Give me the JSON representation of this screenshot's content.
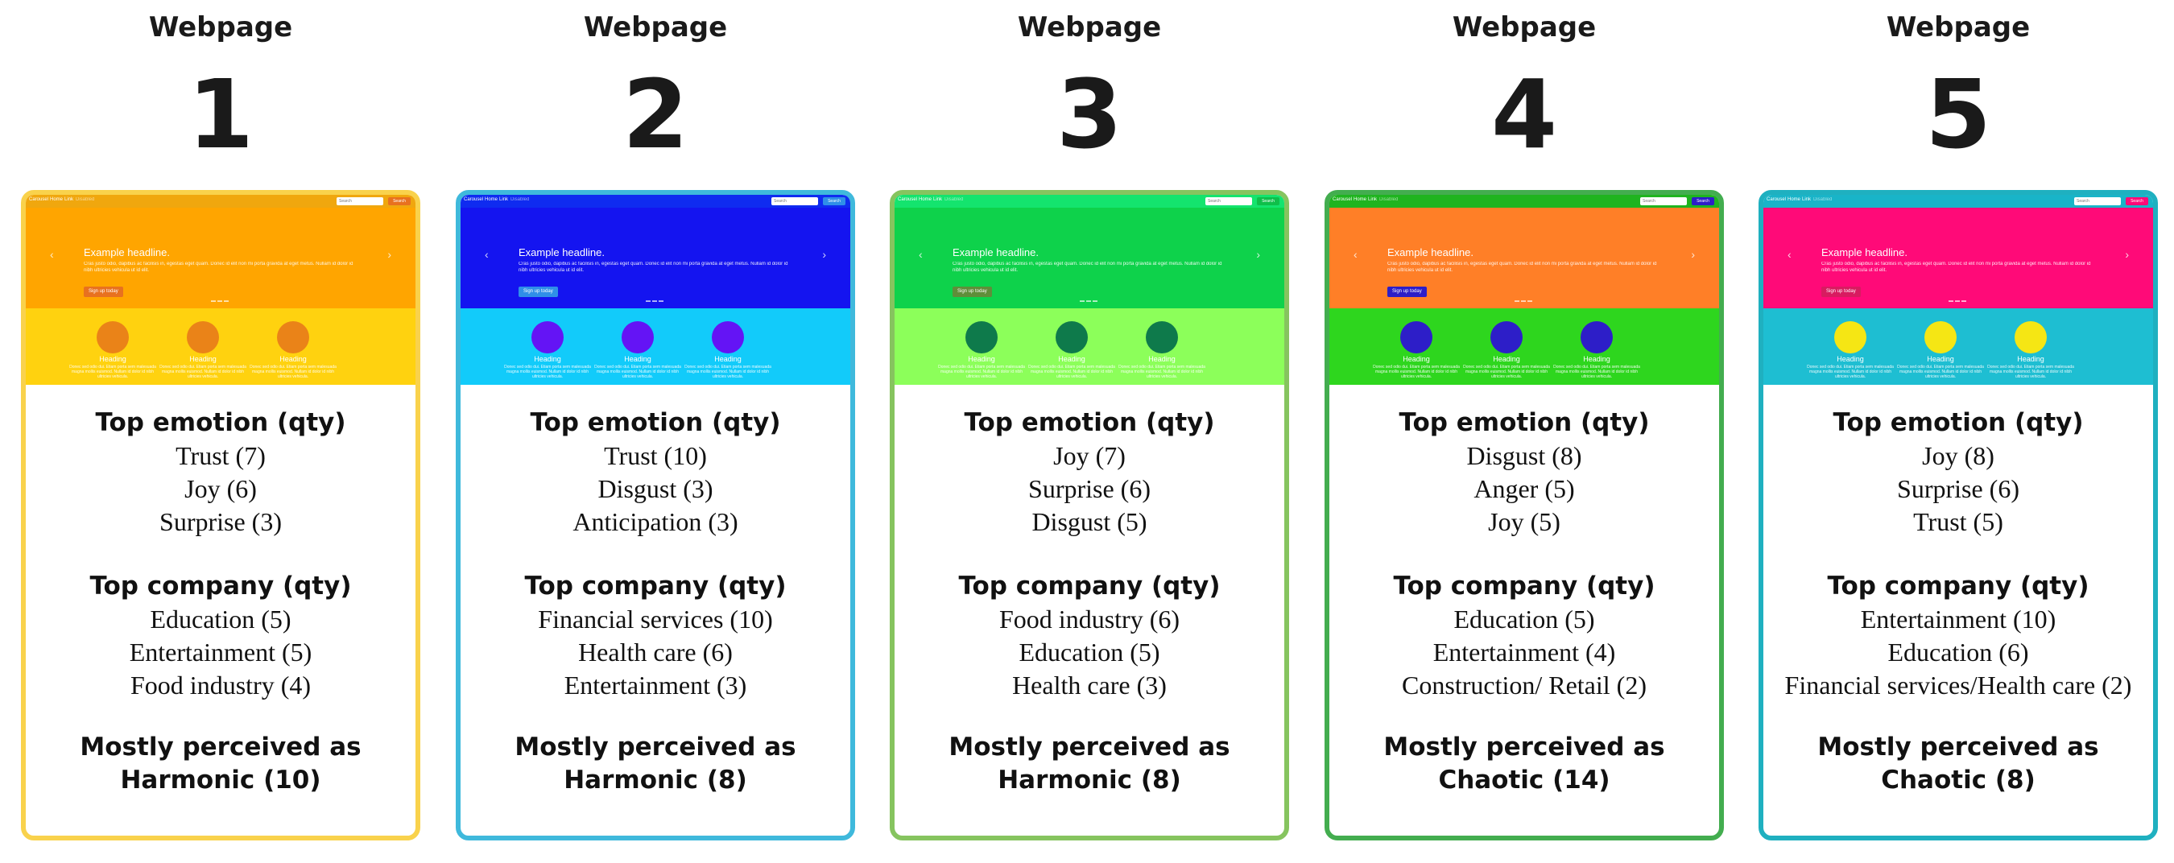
{
  "webpages": [
    {
      "label": "Webpage",
      "number": "1",
      "border_color": "#f9d24c",
      "colors": {
        "navbar": "#f0a70e",
        "hero": "#ffa500",
        "strip": "#ffd20f",
        "circle": "#ea8318",
        "button": "#e8711f",
        "search": "#e8711f"
      },
      "screenshot": {
        "brand": "Carousel",
        "nav": [
          "Home",
          "Link",
          "Disabled"
        ],
        "search_placeholder": "Search",
        "search_button": "Search",
        "headline": "Example headline.",
        "hero_text": "Cras justo odio, dapibus ac facilisis in, egestas eget quam. Donec id elit non mi porta gravida at eget metus. Nullam id dolor id nibh ultricies vehicula ut id elit.",
        "hero_button": "Sign up today",
        "feature_heading": "Heading",
        "feature_text": "Donec sed odio dui. Etiam porta sem malesuada magna mollis euismod. Nullam id dolor id nibh ultricies vehicula."
      },
      "emotion_title": "Top emotion (qty)",
      "emotions": [
        "Trust (7)",
        "Joy (6)",
        "Surprise (3)"
      ],
      "company_title": "Top company (qty)",
      "companies": [
        "Education (5)",
        "Entertainment (5)",
        "Food industry (4)"
      ],
      "perceived_label": "Mostly perceived as",
      "perceived_value": "Harmonic (10)"
    },
    {
      "label": "Webpage",
      "number": "2",
      "border_color": "#3fb9dc",
      "colors": {
        "navbar": "#0f2bf0",
        "hero": "#1414f0",
        "strip": "#12cbfa",
        "circle": "#6414f5",
        "button": "#2f8fe8",
        "search": "#2f8fe8"
      },
      "screenshot": {
        "brand": "Carousel",
        "nav": [
          "Home",
          "Link",
          "Disabled"
        ],
        "search_placeholder": "Search",
        "search_button": "Search",
        "headline": "Example headline.",
        "hero_text": "Cras justo odio, dapibus ac facilisis in, egestas eget quam. Donec id elit non mi porta gravida at eget metus. Nullam id dolor id nibh ultricies vehicula ut id elit.",
        "hero_button": "Sign up today",
        "feature_heading": "Heading",
        "feature_text": "Donec sed odio dui. Etiam porta sem malesuada magna mollis euismod. Nullam id dolor id nibh ultricies vehicula."
      },
      "emotion_title": "Top emotion (qty)",
      "emotions": [
        "Trust (10)",
        "Disgust (3)",
        "Anticipation (3)"
      ],
      "company_title": "Top company (qty)",
      "companies": [
        "Financial services (10)",
        "Health care (6)",
        "Entertainment (3)"
      ],
      "perceived_label": "Mostly perceived as",
      "perceived_value": "Harmonic (8)"
    },
    {
      "label": "Webpage",
      "number": "3",
      "border_color": "#86c45f",
      "colors": {
        "navbar": "#14e46e",
        "hero": "#0ed24b",
        "strip": "#8cff5a",
        "circle": "#0e7a4b",
        "button": "#5f8e3a",
        "search": "#0fbf4a"
      },
      "screenshot": {
        "brand": "Carousel",
        "nav": [
          "Home",
          "Link",
          "Disabled"
        ],
        "search_placeholder": "Search",
        "search_button": "Search",
        "headline": "Example headline.",
        "hero_text": "Cras justo odio, dapibus ac facilisis in, egestas eget quam. Donec id elit non mi porta gravida at eget metus. Nullam id dolor id nibh ultricies vehicula ut id elit.",
        "hero_button": "Sign up today",
        "feature_heading": "Heading",
        "feature_text": "Donec sed odio dui. Etiam porta sem malesuada magna mollis euismod. Nullam id dolor id nibh ultricies vehicula."
      },
      "emotion_title": "Top emotion (qty)",
      "emotions": [
        "Joy (7)",
        "Surprise (6)",
        "Disgust (5)"
      ],
      "company_title": "Top company (qty)",
      "companies": [
        "Food industry (6)",
        "Education (5)",
        "Health care (3)"
      ],
      "perceived_label": "Mostly perceived as",
      "perceived_value": "Harmonic (8)"
    },
    {
      "label": "Webpage",
      "number": "4",
      "border_color": "#43ad4f",
      "colors": {
        "navbar": "#1fb41f",
        "hero": "#ff7f27",
        "strip": "#2ed61e",
        "circle": "#2d1ec8",
        "button": "#2d1ec8",
        "search": "#2d1ec8"
      },
      "screenshot": {
        "brand": "Carousel",
        "nav": [
          "Home",
          "Link",
          "Disabled"
        ],
        "search_placeholder": "Search",
        "search_button": "Search",
        "headline": "Example headline.",
        "hero_text": "Cras justo odio, dapibus ac facilisis in, egestas eget quam. Donec id elit non mi porta gravida at eget metus. Nullam id dolor id nibh ultricies vehicula ut id elit.",
        "hero_button": "Sign up today",
        "feature_heading": "Heading",
        "feature_text": "Donec sed odio dui. Etiam porta sem malesuada magna mollis euismod. Nullam id dolor id nibh ultricies vehicula."
      },
      "emotion_title": "Top emotion (qty)",
      "emotions": [
        "Disgust (8)",
        "Anger (5)",
        "Joy (5)"
      ],
      "company_title": "Top company (qty)",
      "companies": [
        "Education (5)",
        "Entertainment (4)",
        "Construction/ Retail (2)"
      ],
      "perceived_label": "Mostly perceived as",
      "perceived_value": "Chaotic (14)"
    },
    {
      "label": "Webpage",
      "number": "5",
      "border_color": "#1fb0c0",
      "colors": {
        "navbar": "#19b4c8",
        "hero": "#ff0a78",
        "strip": "#1ebed2",
        "circle": "#f5e614",
        "button": "#d81b60",
        "search": "#ff0a78"
      },
      "screenshot": {
        "brand": "Carousel",
        "nav": [
          "Home",
          "Link",
          "Disabled"
        ],
        "search_placeholder": "Search",
        "search_button": "Search",
        "headline": "Example headline.",
        "hero_text": "Cras justo odio, dapibus ac facilisis in, egestas eget quam. Donec id elit non mi porta gravida at eget metus. Nullam id dolor id nibh ultricies vehicula ut id elit.",
        "hero_button": "Sign up today",
        "feature_heading": "Heading",
        "feature_text": "Donec sed odio dui. Etiam porta sem malesuada magna mollis euismod. Nullam id dolor id nibh ultricies vehicula."
      },
      "emotion_title": "Top emotion (qty)",
      "emotions": [
        "Joy (8)",
        "Surprise (6)",
        "Trust (5)"
      ],
      "company_title": "Top company (qty)",
      "companies": [
        "Entertainment (10)",
        "Education (6)",
        "Financial services/Health care (2)"
      ],
      "perceived_label": "Mostly perceived as",
      "perceived_value": "Chaotic (8)"
    }
  ]
}
